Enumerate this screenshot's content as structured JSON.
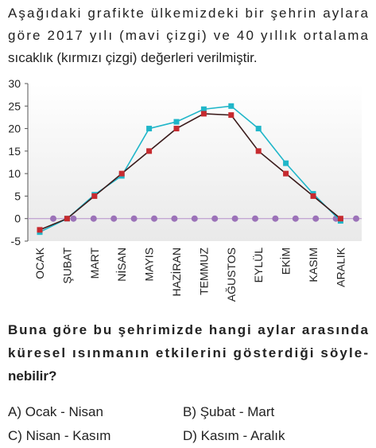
{
  "intro": [
    "Aşağıdaki grafikte ülkemizdeki bir şehrin aylara",
    "göre 2017 yılı (mavi çizgi) ve 40 yıllık ortalama",
    "sıcaklık (kırmızı çizgi) değerleri verilmiştir."
  ],
  "chart_data": {
    "type": "line",
    "categories": [
      "OCAK",
      "ŞUBAT",
      "MART",
      "NİSAN",
      "MAYIS",
      "HAZİRAN",
      "TEMMUZ",
      "AĞUSTOS",
      "EYLÜL",
      "EKİM",
      "KASIM",
      "ARALIK"
    ],
    "series": [
      {
        "color": "#20b6c9",
        "marker_color": "#20b6c9",
        "values": [
          -3,
          0,
          5.3,
          9.5,
          20,
          21.5,
          24.3,
          25,
          20,
          12.3,
          5.5,
          -0.5
        ]
      },
      {
        "color": "#3b1c1c",
        "marker_color": "#c62a2f",
        "values": [
          -2.5,
          0,
          5,
          10,
          15,
          20,
          23.3,
          23,
          15,
          10,
          5,
          0
        ]
      }
    ],
    "ylim": [
      -5,
      30
    ],
    "yticks": [
      -5,
      0,
      5,
      10,
      15,
      20,
      25,
      30
    ],
    "grid": false
  },
  "question": [
    "Buna göre bu şehrimizde hangi aylar arasında",
    "küresel ısınmanın etkilerini gösterdiği söyle-",
    "nebilir?"
  ],
  "options": [
    "A) Ocak - Nisan",
    "B) Şubat - Mart",
    "C) Nisan - Kasım",
    "D) Kasım - Aralık"
  ]
}
